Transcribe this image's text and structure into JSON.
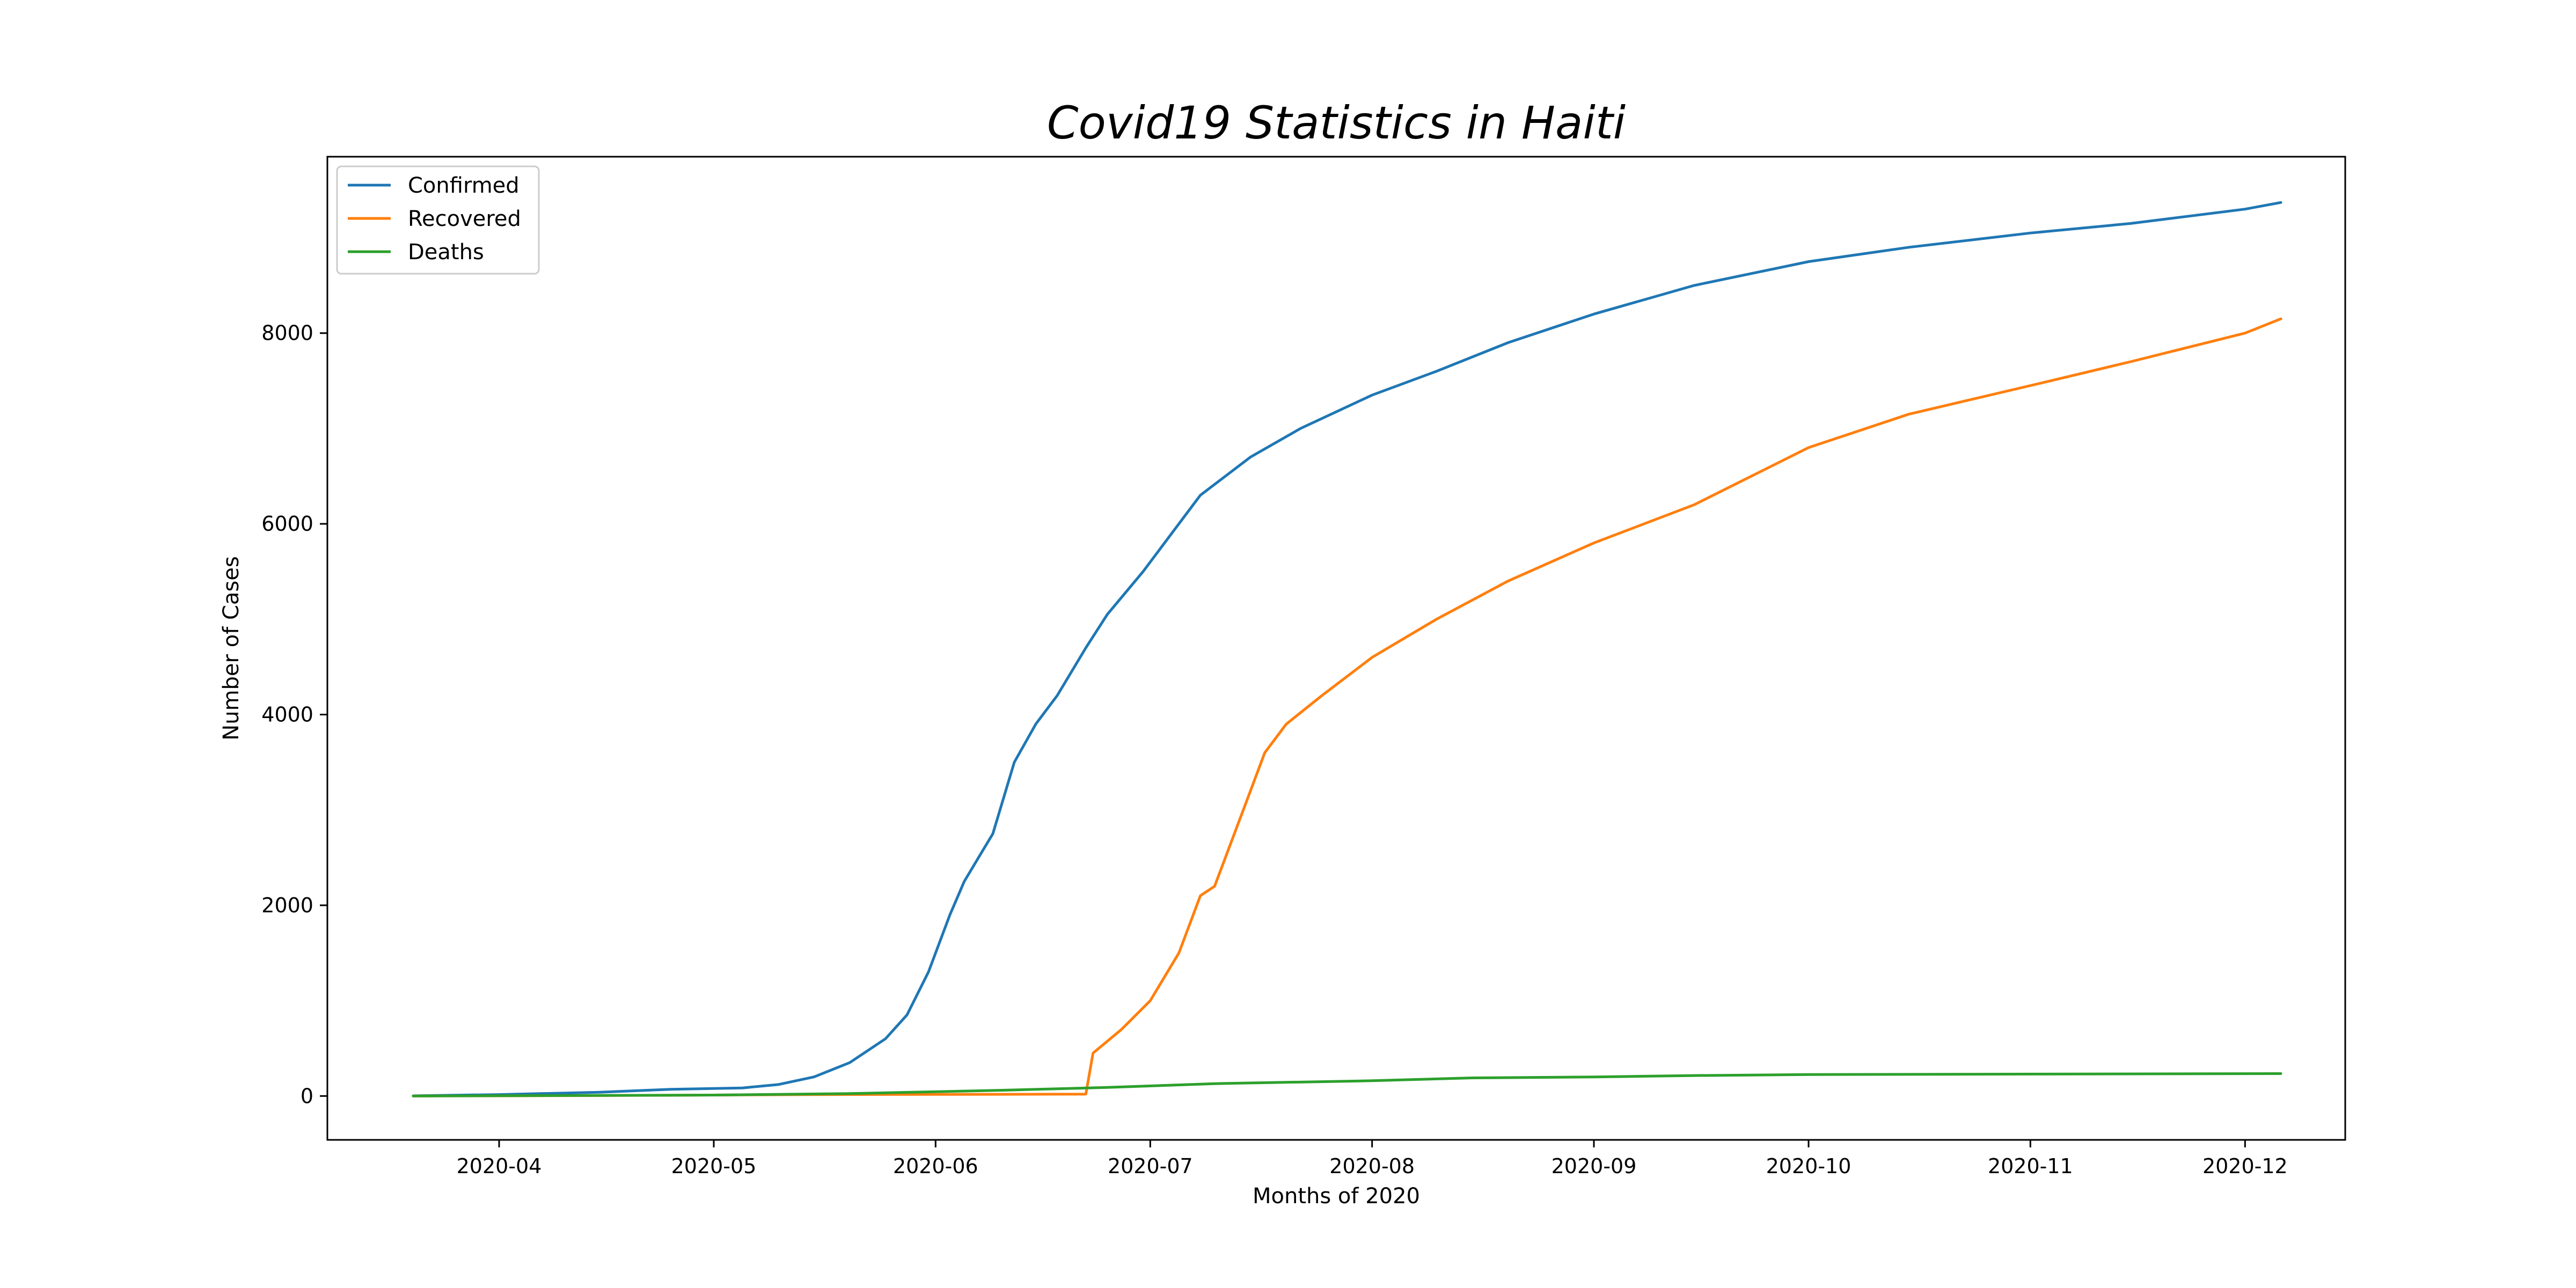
{
  "chart_data": {
    "type": "line",
    "title": "Covid19 Statistics in Haiti",
    "xlabel": "Months of 2020",
    "ylabel": "Number of Cases",
    "xlim": [
      "2020-03-08",
      "2020-12-15"
    ],
    "ylim": [
      -460,
      9850
    ],
    "x_ticks": [
      "2020-04",
      "2020-05",
      "2020-06",
      "2020-07",
      "2020-08",
      "2020-09",
      "2020-10",
      "2020-11",
      "2020-12"
    ],
    "y_ticks": [
      0,
      2000,
      4000,
      6000,
      8000
    ],
    "grid": false,
    "legend_position": "upper-left",
    "series": [
      {
        "name": "Confirmed",
        "color": "#1f77b4",
        "points": [
          [
            "2020-03-20",
            2
          ],
          [
            "2020-04-01",
            15
          ],
          [
            "2020-04-15",
            40
          ],
          [
            "2020-04-25",
            70
          ],
          [
            "2020-05-05",
            85
          ],
          [
            "2020-05-10",
            120
          ],
          [
            "2020-05-15",
            200
          ],
          [
            "2020-05-20",
            350
          ],
          [
            "2020-05-25",
            600
          ],
          [
            "2020-05-28",
            850
          ],
          [
            "2020-05-31",
            1300
          ],
          [
            "2020-06-03",
            1900
          ],
          [
            "2020-06-05",
            2250
          ],
          [
            "2020-06-07",
            2500
          ],
          [
            "2020-06-09",
            2750
          ],
          [
            "2020-06-12",
            3500
          ],
          [
            "2020-06-15",
            3900
          ],
          [
            "2020-06-18",
            4200
          ],
          [
            "2020-06-22",
            4700
          ],
          [
            "2020-06-25",
            5050
          ],
          [
            "2020-06-30",
            5500
          ],
          [
            "2020-07-04",
            5900
          ],
          [
            "2020-07-08",
            6300
          ],
          [
            "2020-07-15",
            6700
          ],
          [
            "2020-07-22",
            7000
          ],
          [
            "2020-08-01",
            7350
          ],
          [
            "2020-08-10",
            7600
          ],
          [
            "2020-08-20",
            7900
          ],
          [
            "2020-09-01",
            8200
          ],
          [
            "2020-09-15",
            8500
          ],
          [
            "2020-10-01",
            8750
          ],
          [
            "2020-10-15",
            8900
          ],
          [
            "2020-11-01",
            9050
          ],
          [
            "2020-11-15",
            9150
          ],
          [
            "2020-12-01",
            9300
          ],
          [
            "2020-12-06",
            9370
          ]
        ]
      },
      {
        "name": "Recovered",
        "color": "#ff7f0e",
        "points": [
          [
            "2020-03-20",
            0
          ],
          [
            "2020-04-15",
            5
          ],
          [
            "2020-05-15",
            15
          ],
          [
            "2020-06-10",
            18
          ],
          [
            "2020-06-22",
            20
          ],
          [
            "2020-06-23",
            450
          ],
          [
            "2020-06-27",
            700
          ],
          [
            "2020-07-01",
            1000
          ],
          [
            "2020-07-05",
            1500
          ],
          [
            "2020-07-08",
            2100
          ],
          [
            "2020-07-10",
            2200
          ],
          [
            "2020-07-12",
            2600
          ],
          [
            "2020-07-14",
            3000
          ],
          [
            "2020-07-17",
            3600
          ],
          [
            "2020-07-20",
            3900
          ],
          [
            "2020-07-25",
            4200
          ],
          [
            "2020-08-01",
            4600
          ],
          [
            "2020-08-10",
            5000
          ],
          [
            "2020-08-20",
            5400
          ],
          [
            "2020-09-01",
            5800
          ],
          [
            "2020-09-15",
            6200
          ],
          [
            "2020-10-01",
            6800
          ],
          [
            "2020-10-15",
            7150
          ],
          [
            "2020-11-01",
            7450
          ],
          [
            "2020-11-15",
            7700
          ],
          [
            "2020-12-01",
            8000
          ],
          [
            "2020-12-06",
            8150
          ]
        ]
      },
      {
        "name": "Deaths",
        "color": "#2ca02c",
        "points": [
          [
            "2020-03-20",
            0
          ],
          [
            "2020-05-01",
            10
          ],
          [
            "2020-05-20",
            25
          ],
          [
            "2020-06-10",
            60
          ],
          [
            "2020-06-25",
            90
          ],
          [
            "2020-07-10",
            130
          ],
          [
            "2020-08-01",
            160
          ],
          [
            "2020-08-15",
            190
          ],
          [
            "2020-09-01",
            200
          ],
          [
            "2020-09-15",
            215
          ],
          [
            "2020-10-01",
            225
          ],
          [
            "2020-11-01",
            230
          ],
          [
            "2020-12-06",
            235
          ]
        ]
      }
    ]
  }
}
